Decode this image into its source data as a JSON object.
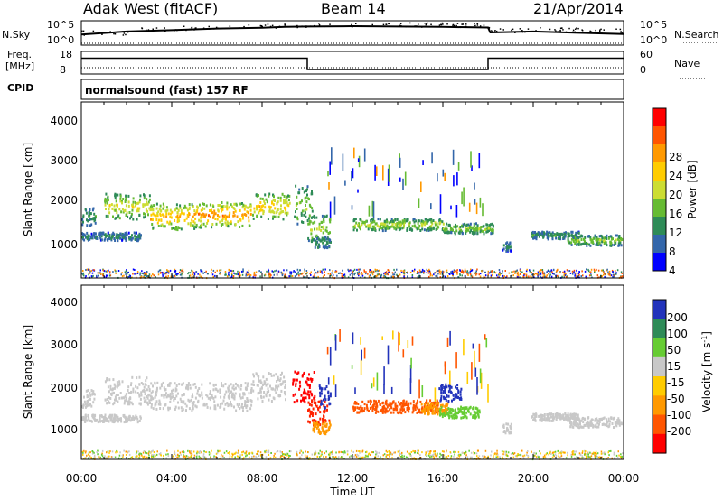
{
  "header": {
    "station": "Adak West (fitACF)",
    "beam": "Beam 14",
    "date": "21/Apr/2014"
  },
  "chart_data": [
    {
      "type": "line",
      "panel": "noise",
      "left_label": "N.Sky",
      "right_label": "N.Search",
      "left_ticks": [
        "10^5",
        "10^0"
      ],
      "right_ticks": [
        "10^5",
        "10^0"
      ],
      "x_hours": [
        0,
        2,
        4,
        6,
        8,
        9,
        10,
        12,
        14,
        16,
        18,
        18.1,
        20,
        22,
        24
      ],
      "sky_level": [
        0.4,
        0.55,
        0.62,
        0.7,
        0.74,
        0.78,
        0.8,
        0.82,
        0.8,
        0.78,
        0.75,
        0.5,
        0.55,
        0.48,
        0.42
      ]
    },
    {
      "type": "line",
      "panel": "frequency",
      "left_label_lines": [
        "Freq.",
        "[MHz]"
      ],
      "right_label": "Nave",
      "left_ticks": [
        "18",
        "8"
      ],
      "right_ticks": [
        "60",
        "0"
      ],
      "freq_steps": [
        {
          "from": 0,
          "to": 10,
          "value_mhz": 15
        },
        {
          "from": 10,
          "to": 18,
          "value_mhz": 10
        },
        {
          "from": 18,
          "to": 24,
          "value_mhz": 15
        }
      ],
      "nave_level": 10
    },
    {
      "type": "table",
      "panel": "cpid",
      "label": "CPID",
      "text": "normalsound (fast) 157 RF"
    },
    {
      "type": "heatmap",
      "panel": "power",
      "ylabel": "Slant Range [km]",
      "yticks": [
        "4000",
        "3000",
        "2000",
        "1000"
      ],
      "ylim": [
        180,
        4600
      ],
      "xlim": [
        0,
        24
      ],
      "colorbar_label": "Power [dB]",
      "colorbar_ticks": [
        "28",
        "24",
        "20",
        "16",
        "12",
        "8",
        "4"
      ],
      "colorbar_colors": [
        "#ff0000",
        "#ff5500",
        "#ff9900",
        "#ffcc00",
        "#ccdd33",
        "#66bb33",
        "#2e8b57",
        "#3366aa",
        "#0000ff"
      ],
      "bands": [
        {
          "x0": 0.0,
          "x1": 0.6,
          "r_center": 1750,
          "r_width": 220,
          "level": 8
        },
        {
          "x0": 0.0,
          "x1": 0.6,
          "r_center": 1250,
          "r_width": 90,
          "level": 6
        },
        {
          "x0": 0.6,
          "x1": 2.6,
          "r_center": 1250,
          "r_width": 100,
          "level": 7
        },
        {
          "x0": 1.0,
          "x1": 3.0,
          "r_center": 2000,
          "r_width": 320,
          "level": 16
        },
        {
          "x0": 3.0,
          "x1": 5.0,
          "r_center": 1750,
          "r_width": 330,
          "level": 20
        },
        {
          "x0": 5.0,
          "x1": 7.5,
          "r_center": 1800,
          "r_width": 320,
          "level": 22
        },
        {
          "x0": 7.5,
          "x1": 9.2,
          "r_center": 2000,
          "r_width": 330,
          "level": 18
        },
        {
          "x0": 9.4,
          "x1": 10.2,
          "r_center": 2050,
          "r_width": 500,
          "level": 12
        },
        {
          "x0": 10.0,
          "x1": 11.0,
          "r_center": 1450,
          "r_width": 350,
          "level": 14
        },
        {
          "x0": 10.2,
          "x1": 11.0,
          "r_center": 1100,
          "r_width": 140,
          "level": 8
        },
        {
          "x0": 12.0,
          "x1": 16.0,
          "r_center": 1550,
          "r_width": 150,
          "level": 14
        },
        {
          "x0": 16.0,
          "x1": 18.2,
          "r_center": 1450,
          "r_width": 130,
          "level": 12
        },
        {
          "x0": 18.6,
          "x1": 19.0,
          "r_center": 1000,
          "r_width": 120,
          "level": 6
        },
        {
          "x0": 19.9,
          "x1": 22.0,
          "r_center": 1280,
          "r_width": 90,
          "level": 8
        },
        {
          "x0": 21.5,
          "x1": 23.9,
          "r_center": 1150,
          "r_width": 130,
          "level": 12
        }
      ]
    },
    {
      "type": "heatmap",
      "panel": "velocity",
      "ylabel": "Slant Range [km]",
      "yticks": [
        "4000",
        "3000",
        "2000",
        "1000"
      ],
      "ylim": [
        180,
        4600
      ],
      "xlim": [
        0,
        24
      ],
      "xticks": [
        "00:00",
        "04:00",
        "08:00",
        "12:00",
        "16:00",
        "20:00",
        "00:00"
      ],
      "xlabel": "Time UT",
      "colorbar_label": "Velocity [m s",
      "colorbar_label_sup": "-1",
      "colorbar_label_end": "]",
      "colorbar_ticks": [
        "200",
        "100",
        "50",
        "15",
        "-15",
        "-50",
        "-100",
        "-200"
      ],
      "colorbar_colors": [
        "#2233bb",
        "#2e8b57",
        "#66cc33",
        "#c8c8c8",
        "#ffcc00",
        "#ff9900",
        "#ff5500",
        "#ff0000"
      ],
      "bands": [
        {
          "x0": 0.0,
          "x1": 0.6,
          "r_center": 1750,
          "r_width": 220,
          "color": "#c8c8c8"
        },
        {
          "x0": 0.0,
          "x1": 2.6,
          "r_center": 1250,
          "r_width": 90,
          "color": "#c8c8c8"
        },
        {
          "x0": 1.0,
          "x1": 3.0,
          "r_center": 1950,
          "r_width": 350,
          "color": "#c8c8c8"
        },
        {
          "x0": 3.0,
          "x1": 7.5,
          "r_center": 1800,
          "r_width": 360,
          "color": "#c8c8c8"
        },
        {
          "x0": 7.5,
          "x1": 9.0,
          "r_center": 2050,
          "r_width": 360,
          "color": "#c8c8c8"
        },
        {
          "x0": 9.3,
          "x1": 10.3,
          "r_center": 2050,
          "r_width": 400,
          "color": "#ff0000"
        },
        {
          "x0": 10.0,
          "x1": 11.0,
          "r_center": 1400,
          "r_width": 350,
          "color": "#ff2200"
        },
        {
          "x0": 10.5,
          "x1": 11.0,
          "r_center": 1800,
          "r_width": 300,
          "color": "#2233bb"
        },
        {
          "x0": 10.2,
          "x1": 11.0,
          "r_center": 1000,
          "r_width": 150,
          "color": "#ff9900"
        },
        {
          "x0": 12.0,
          "x1": 15.8,
          "r_center": 1550,
          "r_width": 160,
          "color": "#ff5500"
        },
        {
          "x0": 15.0,
          "x1": 16.2,
          "r_center": 1500,
          "r_width": 140,
          "color": "#ff9900"
        },
        {
          "x0": 15.8,
          "x1": 17.6,
          "r_center": 1400,
          "r_width": 140,
          "color": "#66cc33"
        },
        {
          "x0": 15.8,
          "x1": 16.8,
          "r_center": 1900,
          "r_width": 220,
          "color": "#2233bb"
        },
        {
          "x0": 18.6,
          "x1": 19.0,
          "r_center": 1000,
          "r_width": 120,
          "color": "#c8c8c8"
        },
        {
          "x0": 19.9,
          "x1": 22.0,
          "r_center": 1280,
          "r_width": 90,
          "color": "#c8c8c8"
        },
        {
          "x0": 21.5,
          "x1": 23.9,
          "r_center": 1150,
          "r_width": 130,
          "color": "#c8c8c8"
        }
      ]
    }
  ]
}
